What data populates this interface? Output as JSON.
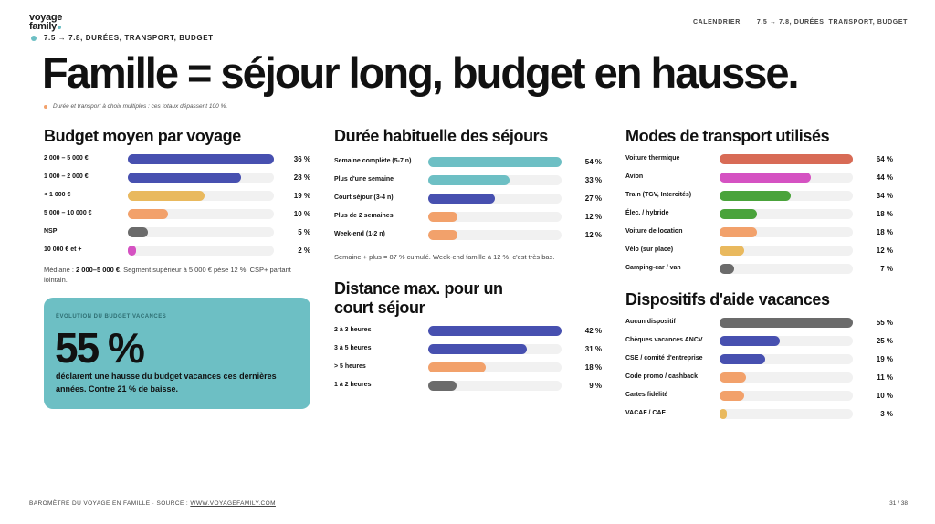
{
  "brand": {
    "logo_line1": "voyage",
    "logo_line2": "family"
  },
  "header": {
    "kicker": "7.5 → 7.8, DURÉES, TRANSPORT, BUDGET",
    "nav": [
      "CALENDRIER",
      "7.5 → 7.8, DURÉES, TRANSPORT, BUDGET"
    ],
    "title": "Famille = séjour long, budget en hausse.",
    "note": "Durée et transport à choix multiples : ces totaux dépassent 100 %."
  },
  "colors": {
    "blue": "#4750b0",
    "teal": "#6dbfc4",
    "yellow": "#e9b95e",
    "orange": "#f2a16b",
    "grey": "#6b6b6b",
    "pink": "#d552c2",
    "red": "#d86b56",
    "green": "#4aa33b",
    "track": "#f1f1f1"
  },
  "chart_data": [
    {
      "type": "bar",
      "title": "Budget moyen par voyage",
      "categories": [
        "2 000 – 5 000 €",
        "1 000 – 2 000 €",
        "< 1 000 €",
        "5 000 – 10 000 €",
        "NSP",
        "10 000 € et +"
      ],
      "values": [
        36,
        28,
        19,
        10,
        5,
        2
      ],
      "value_labels": [
        "36 %",
        "28 %",
        "19 %",
        "10 %",
        "5 %",
        "2 %"
      ],
      "colors": [
        "#4750b0",
        "#4750b0",
        "#e9b95e",
        "#f2a16b",
        "#6b6b6b",
        "#d552c2"
      ],
      "xlim": [
        0,
        36
      ]
    },
    {
      "type": "bar",
      "title": "Durée habituelle des séjours",
      "categories": [
        "Semaine complète (5-7 n)",
        "Plus d'une semaine",
        "Court séjour (3-4 n)",
        "Plus de 2 semaines",
        "Week-end (1-2 n)"
      ],
      "values": [
        54,
        33,
        27,
        12,
        12
      ],
      "value_labels": [
        "54 %",
        "33 %",
        "27 %",
        "12 %",
        "12 %"
      ],
      "colors": [
        "#6dbfc4",
        "#6dbfc4",
        "#4750b0",
        "#f2a16b",
        "#f2a16b"
      ],
      "xlim": [
        0,
        54
      ]
    },
    {
      "type": "bar",
      "title": "Distance max. pour un court séjour",
      "categories": [
        "2 à 3 heures",
        "3 à 5 heures",
        "> 5 heures",
        "1 à 2 heures"
      ],
      "values": [
        42,
        31,
        18,
        9
      ],
      "value_labels": [
        "42 %",
        "31 %",
        "18 %",
        "9 %"
      ],
      "colors": [
        "#4750b0",
        "#4750b0",
        "#f2a16b",
        "#6b6b6b"
      ],
      "xlim": [
        0,
        42
      ]
    },
    {
      "type": "bar",
      "title": "Modes de transport utilisés",
      "categories": [
        "Voiture thermique",
        "Avion",
        "Train (TGV, Intercités)",
        "Élec. / hybride",
        "Voiture de location",
        "Vélo (sur place)",
        "Camping-car / van"
      ],
      "values": [
        64,
        44,
        34,
        18,
        18,
        12,
        7
      ],
      "value_labels": [
        "64 %",
        "44 %",
        "34 %",
        "18 %",
        "18 %",
        "12 %",
        "7 %"
      ],
      "colors": [
        "#d86b56",
        "#d552c2",
        "#4aa33b",
        "#4aa33b",
        "#f2a16b",
        "#e9b95e",
        "#6b6b6b"
      ],
      "xlim": [
        0,
        64
      ]
    },
    {
      "type": "bar",
      "title": "Dispositifs d'aide vacances",
      "categories": [
        "Aucun dispositif",
        "Chèques vacances ANCV",
        "CSE / comité d'entreprise",
        "Code promo / cashback",
        "Cartes fidélité",
        "VACAF / CAF"
      ],
      "values": [
        55,
        25,
        19,
        11,
        10,
        3
      ],
      "value_labels": [
        "55 %",
        "25 %",
        "19 %",
        "11 %",
        "10 %",
        "3 %"
      ],
      "colors": [
        "#6b6b6b",
        "#4750b0",
        "#4750b0",
        "#f2a16b",
        "#f2a16b",
        "#e9b95e"
      ],
      "xlim": [
        0,
        55
      ]
    }
  ],
  "captions": {
    "budget_prefix": "Médiane : ",
    "budget_bold": "2 000–5 000 €",
    "budget_rest": ". Segment supérieur à 5 000 € pèse 12 %, CSP+ partant lointain.",
    "duration": "Semaine + plus = 87 % cumulé. Week-end famille à 12 %, c'est très bas."
  },
  "callout": {
    "kicker": "ÉVOLUTION DU BUDGET VACANCES",
    "big": "55 %",
    "text": "déclarent une hausse du budget vacances ces dernières années. Contre 21 % de baisse."
  },
  "footer": {
    "left_prefix": "BAROMÈTRE DU VOYAGE EN FAMILLE · SOURCE : ",
    "left_link": "WWW.VOYAGEFAMILY.COM",
    "right": "31 / 38"
  }
}
